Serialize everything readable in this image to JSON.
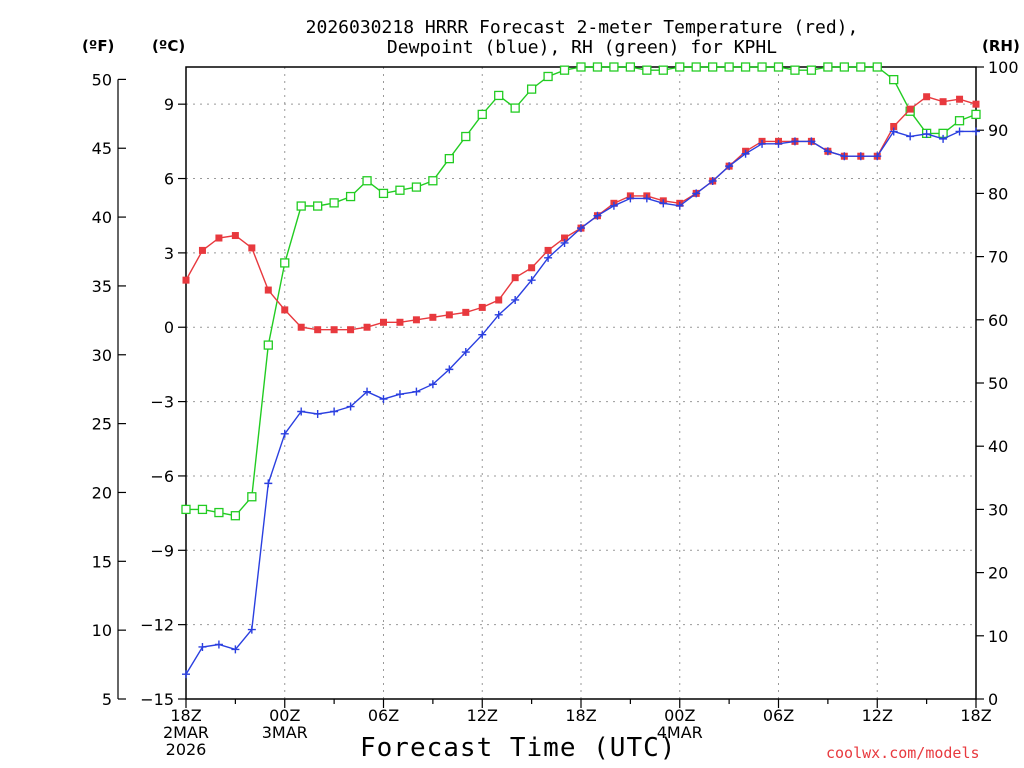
{
  "chart_data": {
    "type": "line",
    "title_line1": "2026030218 HRRR Forecast 2-meter Temperature (red),",
    "title_line2": "Dewpoint (blue), RH (green) for KPHL",
    "xlabel": "Forecast Time (UTC)",
    "left_outer_unit": "(ºF)",
    "left_inner_unit": "(ºC)",
    "right_unit": "(RH)",
    "credit": "coolwx.com/models",
    "x_range_hours": [
      0,
      48
    ],
    "celsius_range": [
      -15,
      10.5
    ],
    "rh_range": [
      0,
      100
    ],
    "x_ticks": [
      {
        "hour": 0,
        "lines": [
          "18Z",
          "2MAR",
          "2026"
        ]
      },
      {
        "hour": 6,
        "lines": [
          "00Z",
          "3MAR"
        ]
      },
      {
        "hour": 12,
        "lines": [
          "06Z"
        ]
      },
      {
        "hour": 18,
        "lines": [
          "12Z"
        ]
      },
      {
        "hour": 24,
        "lines": [
          "18Z"
        ]
      },
      {
        "hour": 30,
        "lines": [
          "00Z",
          "4MAR"
        ]
      },
      {
        "hour": 36,
        "lines": [
          "06Z"
        ]
      },
      {
        "hour": 42,
        "lines": [
          "12Z"
        ]
      },
      {
        "hour": 48,
        "lines": [
          "18Z"
        ]
      }
    ],
    "celsius_ticks": [
      "-15",
      "-12",
      "-9",
      "-6",
      "-3",
      "0",
      "3",
      "6",
      "9"
    ],
    "fahrenheit_ticks": [
      "5",
      "10",
      "15",
      "20",
      "25",
      "30",
      "35",
      "40",
      "45",
      "50"
    ],
    "rh_ticks": [
      "0",
      "10",
      "20",
      "30",
      "40",
      "50",
      "60",
      "70",
      "80",
      "90",
      "100"
    ],
    "colors": {
      "temperature": "#e8393e",
      "dewpoint": "#2a3fe0",
      "rh": "#22cc22",
      "grid": "#999999"
    },
    "series": [
      {
        "name": "Temperature",
        "unit": "C",
        "values": [
          1.9,
          3.1,
          3.6,
          3.7,
          3.2,
          1.5,
          0.7,
          0.0,
          -0.1,
          -0.1,
          -0.1,
          0.0,
          0.2,
          0.2,
          0.3,
          0.4,
          0.5,
          0.6,
          0.8,
          1.1,
          2.0,
          2.4,
          3.1,
          3.6,
          4.0,
          4.5,
          5.0,
          5.3,
          5.3,
          5.1,
          5.0,
          5.4,
          5.9,
          6.5,
          7.1,
          7.5,
          7.5,
          7.5,
          7.5,
          7.1,
          6.9,
          6.9,
          6.9,
          8.1,
          8.8,
          9.3,
          9.1,
          9.2,
          9.0
        ]
      },
      {
        "name": "Dewpoint",
        "unit": "C",
        "values": [
          -14.0,
          -12.9,
          -12.8,
          -13.0,
          -12.2,
          -6.3,
          -4.3,
          -3.4,
          -3.5,
          -3.4,
          -3.2,
          -2.6,
          -2.9,
          -2.7,
          -2.6,
          -2.3,
          -1.7,
          -1.0,
          -0.3,
          0.5,
          1.1,
          1.9,
          2.8,
          3.4,
          4.0,
          4.5,
          4.9,
          5.2,
          5.2,
          5.0,
          4.9,
          5.4,
          5.9,
          6.5,
          7.0,
          7.4,
          7.4,
          7.5,
          7.5,
          7.1,
          6.9,
          6.9,
          6.9,
          7.9,
          7.7,
          7.8,
          7.6,
          7.9,
          7.9
        ]
      },
      {
        "name": "RH",
        "unit": "%",
        "values": [
          30,
          30,
          29.5,
          29,
          32,
          56,
          69,
          78,
          78,
          78.5,
          79.5,
          82,
          80,
          80.5,
          81,
          82,
          85.5,
          89,
          92.5,
          95.5,
          93.5,
          96.5,
          98.5,
          99.5,
          100,
          100,
          100,
          100,
          99.5,
          99.5,
          100,
          100,
          100,
          100,
          100,
          100,
          100,
          99.5,
          99.5,
          100,
          100,
          100,
          100,
          98,
          93,
          89.5,
          89.5,
          91.5,
          92.5
        ]
      }
    ]
  }
}
